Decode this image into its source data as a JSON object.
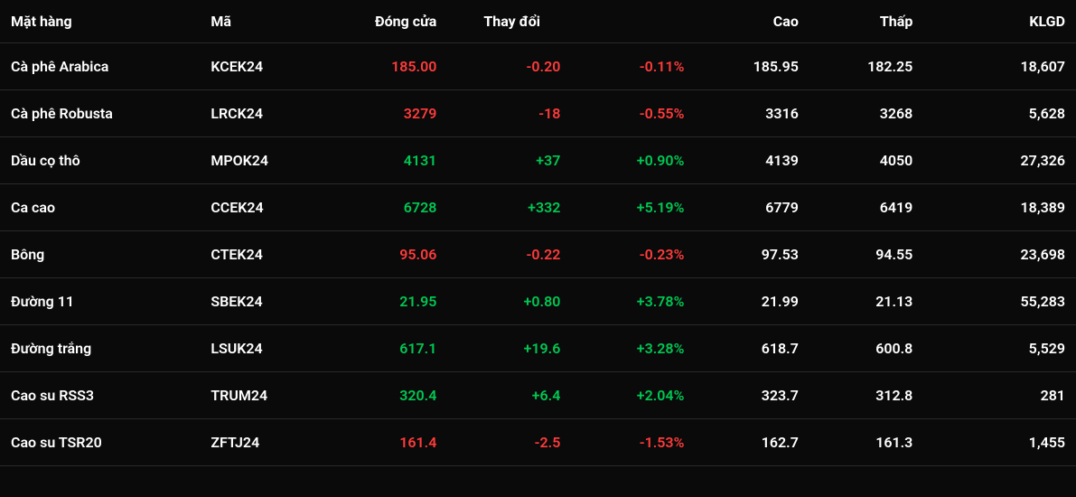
{
  "colors": {
    "background": "#0a0a0a",
    "text": "#ffffff",
    "border": "#2a2a2a",
    "up": "#00c853",
    "down": "#ff3b3b"
  },
  "headers": {
    "name": "Mặt hàng",
    "code": "Mã",
    "close": "Đóng cửa",
    "change": "Thay đổi",
    "high": "Cao",
    "low": "Thấp",
    "volume": "KLGD"
  },
  "rows": [
    {
      "name": "Cà phê Arabica",
      "code": "KCEK24",
      "close": "185.00",
      "change_abs": "-0.20",
      "change_pct": "-0.11%",
      "direction": "down",
      "high": "185.95",
      "low": "182.25",
      "volume": "18,607"
    },
    {
      "name": "Cà phê Robusta",
      "code": "LRCK24",
      "close": "3279",
      "change_abs": "-18",
      "change_pct": "-0.55%",
      "direction": "down",
      "high": "3316",
      "low": "3268",
      "volume": "5,628"
    },
    {
      "name": "Dầu cọ thô",
      "code": "MPOK24",
      "close": "4131",
      "change_abs": "+37",
      "change_pct": "+0.90%",
      "direction": "up",
      "high": "4139",
      "low": "4050",
      "volume": "27,326"
    },
    {
      "name": "Ca cao",
      "code": "CCEK24",
      "close": "6728",
      "change_abs": "+332",
      "change_pct": "+5.19%",
      "direction": "up",
      "high": "6779",
      "low": "6419",
      "volume": "18,389"
    },
    {
      "name": "Bông",
      "code": "CTEK24",
      "close": "95.06",
      "change_abs": "-0.22",
      "change_pct": "-0.23%",
      "direction": "down",
      "high": "97.53",
      "low": "94.55",
      "volume": "23,698"
    },
    {
      "name": "Đường 11",
      "code": "SBEK24",
      "close": "21.95",
      "change_abs": "+0.80",
      "change_pct": "+3.78%",
      "direction": "up",
      "high": "21.99",
      "low": "21.13",
      "volume": "55,283"
    },
    {
      "name": "Đường trắng",
      "code": "LSUK24",
      "close": "617.1",
      "change_abs": "+19.6",
      "change_pct": "+3.28%",
      "direction": "up",
      "high": "618.7",
      "low": "600.8",
      "volume": "5,529"
    },
    {
      "name": "Cao su RSS3",
      "code": "TRUM24",
      "close": "320.4",
      "change_abs": "+6.4",
      "change_pct": "+2.04%",
      "direction": "up",
      "high": "323.7",
      "low": "312.8",
      "volume": "281"
    },
    {
      "name": "Cao su TSR20",
      "code": "ZFTJ24",
      "close": "161.4",
      "change_abs": "-2.5",
      "change_pct": "-1.53%",
      "direction": "down",
      "high": "162.7",
      "low": "161.3",
      "volume": "1,455"
    }
  ]
}
